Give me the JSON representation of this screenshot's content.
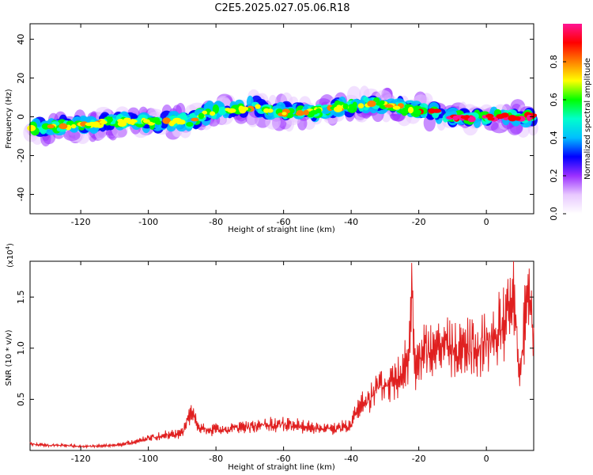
{
  "title": "C2E5.2025.027.05.06.R18",
  "chart_data": [
    {
      "type": "heatmap",
      "xlabel": "Height of straight line (km)",
      "ylabel": "Frequency (Hz)",
      "xlim": [
        -135,
        14
      ],
      "ylim": [
        -50,
        48
      ],
      "xticks": [
        -120,
        -100,
        -80,
        -60,
        -40,
        -20,
        0
      ],
      "yticks": [
        -40,
        -20,
        0,
        20,
        40
      ],
      "grid": false,
      "ridge": {
        "x": [
          -135,
          -128,
          -120,
          -112,
          -104,
          -96,
          -88,
          -82,
          -76,
          -68,
          -60,
          -52,
          -46,
          -40,
          -34,
          -28,
          -24,
          -18,
          -12,
          -6,
          0,
          6,
          12,
          14
        ],
        "y": [
          -6,
          -5,
          -4,
          -3,
          -2,
          -3,
          -2,
          2,
          4,
          5,
          2,
          2,
          4,
          6,
          7,
          6,
          4,
          3,
          1,
          -1,
          0,
          0,
          0,
          0
        ]
      },
      "colorbar": {
        "label": "Normalized spectral amplitude",
        "range": [
          0,
          1
        ],
        "ticks": [
          "0.0",
          "0.2",
          "0.4",
          "0.6",
          "0.8"
        ],
        "colors": [
          "#ffffff",
          "#e8c8ff",
          "#9b30ff",
          "#0000ff",
          "#00bfff",
          "#00ffcc",
          "#00ff00",
          "#ffff00",
          "#ff8000",
          "#ff0000",
          "#ff1493"
        ]
      }
    },
    {
      "type": "line",
      "xlabel": "Height of straight line (km)",
      "ylabel": "SNR (10 * v/v)",
      "yexponent": "(x10",
      "yexponent_power": "4",
      "xlim": [
        -135,
        14
      ],
      "ylim": [
        0,
        1.85
      ],
      "xticks": [
        -120,
        -100,
        -80,
        -60,
        -40,
        -20,
        0
      ],
      "yticks": [
        0.5,
        1.0,
        1.5
      ],
      "ytick_labels": [
        "0.5",
        "1.0",
        "1.5"
      ],
      "grid": false,
      "series": [
        {
          "color": "#e02020",
          "x": [
            -135,
            -130,
            -125,
            -120,
            -115,
            -110,
            -105,
            -100,
            -95,
            -90,
            -87,
            -85,
            -80,
            -75,
            -70,
            -65,
            -60,
            -55,
            -50,
            -45,
            -40,
            -38,
            -35,
            -32,
            -30,
            -27,
            -25,
            -23,
            -22,
            -21,
            -20,
            -18,
            -15,
            -12,
            -10,
            -8,
            -5,
            -2,
            0,
            3,
            6,
            8,
            10,
            12,
            14
          ],
          "y": [
            0.08,
            0.06,
            0.06,
            0.05,
            0.05,
            0.06,
            0.09,
            0.14,
            0.18,
            0.2,
            0.46,
            0.24,
            0.24,
            0.26,
            0.28,
            0.3,
            0.3,
            0.28,
            0.26,
            0.25,
            0.3,
            0.48,
            0.6,
            0.72,
            0.75,
            0.82,
            0.92,
            1.1,
            1.78,
            0.95,
            1.0,
            1.18,
            1.1,
            1.25,
            1.12,
            1.2,
            1.18,
            1.25,
            1.3,
            1.4,
            1.5,
            1.85,
            0.9,
            1.75,
            1.45
          ]
        }
      ]
    }
  ]
}
